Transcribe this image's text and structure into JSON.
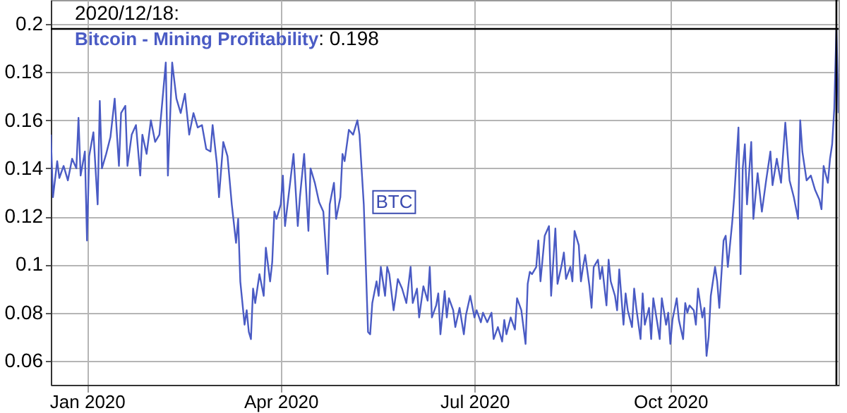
{
  "chart_data": {
    "type": "line",
    "xlim": [
      "2019-12-15",
      "2020-12-19"
    ],
    "ylim": [
      0.05,
      0.21
    ],
    "xticks": [
      {
        "value": "2020-01-01",
        "label": "Jan 2020"
      },
      {
        "value": "2020-04-01",
        "label": "Apr 2020"
      },
      {
        "value": "2020-07-01",
        "label": "Jul 2020"
      },
      {
        "value": "2020-10-01",
        "label": "Oct 2020"
      }
    ],
    "yticks": [
      0.06,
      0.08,
      0.1,
      0.12,
      0.14,
      0.16,
      0.18,
      0.2
    ],
    "grid": true,
    "legend": false,
    "marker": "none",
    "line_style": "solid",
    "annotations": [
      "2020/12/18:",
      ": 0.198",
      {
        "text": "BTC",
        "x": "2020-05-13",
        "y": 0.126
      }
    ],
    "ref_lines": [
      {
        "axis": "y",
        "value": 0.198,
        "label": null,
        "color": "#000000"
      },
      {
        "axis": "x",
        "value": "2020-12-18",
        "label": null,
        "color": "#000000"
      }
    ],
    "x": [
      "2019-12-15",
      "2019-12-16",
      "2019-12-18",
      "2019-12-19",
      "2019-12-21",
      "2019-12-23",
      "2019-12-25",
      "2019-12-27",
      "2019-12-28",
      "2019-12-29",
      "2019-12-31",
      "2020-01-01",
      "2020-01-02",
      "2020-01-04",
      "2020-01-06",
      "2020-01-07",
      "2020-01-08",
      "2020-01-10",
      "2020-01-12",
      "2020-01-14",
      "2020-01-16",
      "2020-01-17",
      "2020-01-19",
      "2020-01-20",
      "2020-01-22",
      "2020-01-24",
      "2020-01-26",
      "2020-01-27",
      "2020-01-29",
      "2020-01-31",
      "2020-02-02",
      "2020-02-04",
      "2020-02-07",
      "2020-02-08",
      "2020-02-10",
      "2020-02-12",
      "2020-02-14",
      "2020-02-16",
      "2020-02-18",
      "2020-02-20",
      "2020-02-22",
      "2020-02-24",
      "2020-02-26",
      "2020-02-28",
      "2020-02-29",
      "2020-03-02",
      "2020-03-03",
      "2020-03-05",
      "2020-03-07",
      "2020-03-09",
      "2020-03-11",
      "2020-03-12",
      "2020-03-13",
      "2020-03-15",
      "2020-03-16",
      "2020-03-17",
      "2020-03-18",
      "2020-03-19",
      "2020-03-20",
      "2020-03-22",
      "2020-03-24",
      "2020-03-25",
      "2020-03-27",
      "2020-03-28",
      "2020-03-29",
      "2020-03-30",
      "2020-04-01",
      "2020-04-02",
      "2020-04-03",
      "2020-04-05",
      "2020-04-07",
      "2020-04-09",
      "2020-04-10",
      "2020-04-12",
      "2020-04-14",
      "2020-04-15",
      "2020-04-17",
      "2020-04-19",
      "2020-04-21",
      "2020-04-23",
      "2020-04-24",
      "2020-04-26",
      "2020-04-27",
      "2020-04-29",
      "2020-04-30",
      "2020-05-01",
      "2020-05-03",
      "2020-05-05",
      "2020-05-07",
      "2020-05-08",
      "2020-05-10",
      "2020-05-12",
      "2020-05-13",
      "2020-05-14",
      "2020-05-16",
      "2020-05-17",
      "2020-05-18",
      "2020-05-20",
      "2020-05-21",
      "2020-05-22",
      "2020-05-24",
      "2020-05-25",
      "2020-05-26",
      "2020-05-28",
      "2020-05-30",
      "2020-06-01",
      "2020-06-02",
      "2020-06-04",
      "2020-06-05",
      "2020-06-07",
      "2020-06-09",
      "2020-06-10",
      "2020-06-11",
      "2020-06-13",
      "2020-06-14",
      "2020-06-15",
      "2020-06-17",
      "2020-06-18",
      "2020-06-19",
      "2020-06-21",
      "2020-06-22",
      "2020-06-24",
      "2020-06-26",
      "2020-06-27",
      "2020-06-29",
      "2020-07-01",
      "2020-07-02",
      "2020-07-04",
      "2020-07-05",
      "2020-07-07",
      "2020-07-09",
      "2020-07-10",
      "2020-07-12",
      "2020-07-14",
      "2020-07-15",
      "2020-07-16",
      "2020-07-18",
      "2020-07-20",
      "2020-07-21",
      "2020-07-23",
      "2020-07-25",
      "2020-07-26",
      "2020-07-27",
      "2020-07-28",
      "2020-07-30",
      "2020-07-31",
      "2020-08-01",
      "2020-08-03",
      "2020-08-05",
      "2020-08-06",
      "2020-08-08",
      "2020-08-09",
      "2020-08-11",
      "2020-08-12",
      "2020-08-13",
      "2020-08-15",
      "2020-08-16",
      "2020-08-17",
      "2020-08-19",
      "2020-08-20",
      "2020-08-21",
      "2020-08-22",
      "2020-08-24",
      "2020-08-25",
      "2020-08-26",
      "2020-08-28",
      "2020-08-29",
      "2020-08-30",
      "2020-09-01",
      "2020-09-02",
      "2020-09-03",
      "2020-09-05",
      "2020-09-06",
      "2020-09-07",
      "2020-09-09",
      "2020-09-10",
      "2020-09-11",
      "2020-09-13",
      "2020-09-14",
      "2020-09-15",
      "2020-09-17",
      "2020-09-18",
      "2020-09-19",
      "2020-09-21",
      "2020-09-22",
      "2020-09-23",
      "2020-09-25",
      "2020-09-26",
      "2020-09-27",
      "2020-09-29",
      "2020-09-30",
      "2020-10-01",
      "2020-10-02",
      "2020-10-04",
      "2020-10-05",
      "2020-10-07",
      "2020-10-08",
      "2020-10-09",
      "2020-10-10",
      "2020-10-12",
      "2020-10-13",
      "2020-10-14",
      "2020-10-16",
      "2020-10-17",
      "2020-10-18",
      "2020-10-19",
      "2020-10-20",
      "2020-10-22",
      "2020-10-23",
      "2020-10-24",
      "2020-10-26",
      "2020-10-27",
      "2020-10-28",
      "2020-10-30",
      "2020-10-31",
      "2020-11-02",
      "2020-11-03",
      "2020-11-04",
      "2020-11-05",
      "2020-11-06",
      "2020-11-08",
      "2020-11-09",
      "2020-11-11",
      "2020-11-13",
      "2020-11-15",
      "2020-11-17",
      "2020-11-18",
      "2020-11-20",
      "2020-11-22",
      "2020-11-24",
      "2020-11-26",
      "2020-11-28",
      "2020-11-30",
      "2020-12-01",
      "2020-12-02",
      "2020-12-04",
      "2020-12-06",
      "2020-12-08",
      "2020-12-10",
      "2020-12-11",
      "2020-12-12",
      "2020-12-14",
      "2020-12-15",
      "2020-12-16",
      "2020-12-17",
      "2020-12-18",
      "2020-12-19"
    ],
    "series": [
      {
        "name": "Bitcoin - Mining Profitability",
        "color": "#4a5bc4",
        "values": [
          0.154,
          0.128,
          0.143,
          0.136,
          0.141,
          0.135,
          0.144,
          0.14,
          0.161,
          0.137,
          0.147,
          0.11,
          0.145,
          0.155,
          0.125,
          0.168,
          0.14,
          0.146,
          0.153,
          0.169,
          0.141,
          0.163,
          0.166,
          0.141,
          0.154,
          0.158,
          0.137,
          0.154,
          0.146,
          0.16,
          0.151,
          0.154,
          0.184,
          0.137,
          0.184,
          0.169,
          0.163,
          0.171,
          0.154,
          0.163,
          0.157,
          0.158,
          0.148,
          0.147,
          0.158,
          0.142,
          0.128,
          0.151,
          0.145,
          0.125,
          0.109,
          0.119,
          0.093,
          0.075,
          0.081,
          0.072,
          0.069,
          0.09,
          0.084,
          0.096,
          0.087,
          0.107,
          0.093,
          0.101,
          0.122,
          0.119,
          0.125,
          0.137,
          0.116,
          0.131,
          0.146,
          0.116,
          0.128,
          0.146,
          0.114,
          0.14,
          0.134,
          0.126,
          0.122,
          0.096,
          0.125,
          0.134,
          0.119,
          0.128,
          0.146,
          0.143,
          0.156,
          0.154,
          0.16,
          0.154,
          0.125,
          0.072,
          0.071,
          0.084,
          0.093,
          0.087,
          0.099,
          0.087,
          0.099,
          0.096,
          0.081,
          0.087,
          0.094,
          0.09,
          0.084,
          0.099,
          0.084,
          0.09,
          0.078,
          0.091,
          0.085,
          0.099,
          0.078,
          0.083,
          0.088,
          0.071,
          0.089,
          0.078,
          0.086,
          0.081,
          0.074,
          0.082,
          0.071,
          0.079,
          0.087,
          0.078,
          0.081,
          0.076,
          0.08,
          0.076,
          0.08,
          0.069,
          0.074,
          0.068,
          0.077,
          0.071,
          0.078,
          0.073,
          0.086,
          0.081,
          0.067,
          0.092,
          0.097,
          0.096,
          0.099,
          0.11,
          0.093,
          0.112,
          0.116,
          0.087,
          0.115,
          0.092,
          0.1,
          0.105,
          0.094,
          0.099,
          0.093,
          0.114,
          0.108,
          0.093,
          0.099,
          0.104,
          0.091,
          0.082,
          0.099,
          0.102,
          0.094,
          0.099,
          0.083,
          0.102,
          0.093,
          0.087,
          0.081,
          0.098,
          0.075,
          0.088,
          0.081,
          0.074,
          0.09,
          0.082,
          0.069,
          0.088,
          0.075,
          0.082,
          0.069,
          0.086,
          0.075,
          0.069,
          0.086,
          0.075,
          0.08,
          0.067,
          0.077,
          0.086,
          0.077,
          0.069,
          0.084,
          0.08,
          0.083,
          0.081,
          0.075,
          0.09,
          0.078,
          0.082,
          0.062,
          0.07,
          0.087,
          0.099,
          0.093,
          0.082,
          0.11,
          0.112,
          0.099,
          0.117,
          0.128,
          0.157,
          0.096,
          0.14,
          0.15,
          0.125,
          0.151,
          0.119,
          0.138,
          0.122,
          0.135,
          0.147,
          0.133,
          0.144,
          0.134,
          0.159,
          0.135,
          0.128,
          0.119,
          0.16,
          0.147,
          0.135,
          0.137,
          0.131,
          0.127,
          0.123,
          0.141,
          0.134,
          0.144,
          0.15,
          0.165,
          0.198,
          0.163
        ]
      }
    ]
  }
}
